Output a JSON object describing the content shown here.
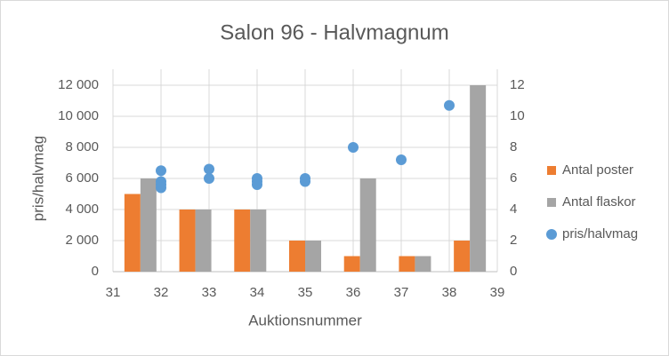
{
  "chart_data": {
    "type": "combo",
    "title": "Salon 96 - Halvmagnum",
    "x_label": "Auktionsnummer",
    "y_label": "pris/halvmag",
    "xlim": [
      31,
      39
    ],
    "xticks": [
      31,
      32,
      33,
      34,
      35,
      36,
      37,
      38,
      39
    ],
    "ylim": [
      0,
      12000
    ],
    "yticks": [
      0,
      {
        "value": 2000,
        "label": "2 000"
      },
      {
        "value": 4000,
        "label": "4 000"
      },
      {
        "value": 6000,
        "label": "6 000"
      },
      {
        "value": 8000,
        "label": "8 000"
      },
      {
        "value": 10000,
        "label": "10 000"
      },
      {
        "value": 12000,
        "label": "12 000"
      }
    ],
    "y2lim": [
      0,
      12
    ],
    "y2ticks": [
      0,
      2,
      4,
      6,
      8,
      10,
      12
    ],
    "grid": true,
    "legend": "right",
    "series": [
      {
        "name": "Antal poster",
        "type": "bar",
        "axis": "y2",
        "color": "#ed7d31",
        "values": [
          5,
          4,
          4,
          2,
          1,
          1,
          2
        ]
      },
      {
        "name": "Antal flaskor",
        "type": "bar",
        "axis": "y2",
        "color": "#a5a5a5",
        "values": [
          6,
          4,
          4,
          2,
          6,
          1,
          12
        ]
      },
      {
        "name": "pris/halvmag",
        "type": "scatter",
        "color": "#5b9bd5",
        "x": [
          32,
          32,
          32,
          32,
          33,
          33,
          34,
          34,
          34,
          35,
          35,
          36,
          37,
          38
        ],
        "values": [
          6500,
          5800,
          5600,
          5400,
          6600,
          6000,
          6000,
          5800,
          5600,
          6000,
          5800,
          8000,
          7200,
          10700
        ]
      }
    ]
  }
}
